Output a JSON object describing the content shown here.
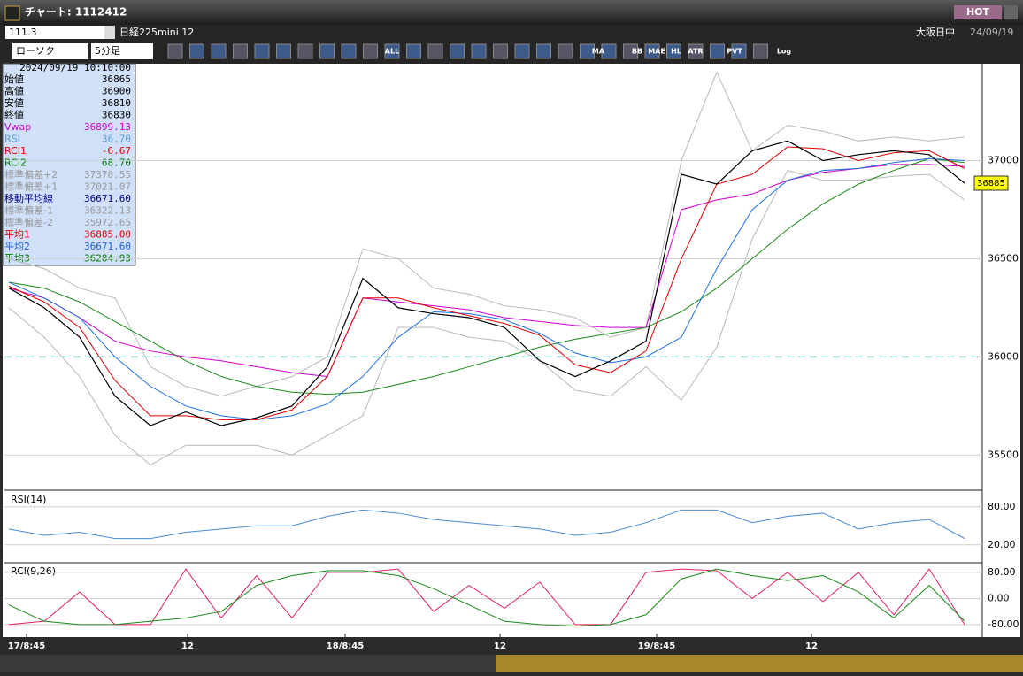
{
  "window": {
    "title": "チャート: 1112412",
    "hot": "HOT"
  },
  "toolbar": {
    "code": "111.3",
    "name": "日経225mini 12",
    "chart_type": "ローソク",
    "interval": "5分足",
    "session": "大阪日中",
    "date": "24/09/19",
    "buttons": [
      "ALL",
      "MA",
      "BB",
      "MAE",
      "HL",
      "ATR",
      "PVT",
      "Log"
    ]
  },
  "info": {
    "datetime": "2024/09/19  10:10:00",
    "rows": [
      {
        "label": "始値",
        "value": "36865",
        "color": "#000000"
      },
      {
        "label": "高値",
        "value": "36900",
        "color": "#000000"
      },
      {
        "label": "安値",
        "value": "36810",
        "color": "#000000"
      },
      {
        "label": "終値",
        "value": "36830",
        "color": "#000000"
      },
      {
        "label": "Vwap",
        "value": "36899.13",
        "color": "#d000d0"
      },
      {
        "label": "RSI",
        "value": "36.70",
        "color": "#5b9bd5"
      },
      {
        "label": "RCI1",
        "value": "-6.67",
        "color": "#e00000"
      },
      {
        "label": "RCI2",
        "value": "68.70",
        "color": "#007a00"
      },
      {
        "label": "標準偏差+2",
        "value": "37370.55",
        "color": "#999999"
      },
      {
        "label": "標準偏差+1",
        "value": "37021.07",
        "color": "#999999"
      },
      {
        "label": "移動平均線",
        "value": "36671.60",
        "color": "#000080"
      },
      {
        "label": "標準偏差-1",
        "value": "36322.13",
        "color": "#999999"
      },
      {
        "label": "標準偏差-2",
        "value": "35972.65",
        "color": "#999999"
      },
      {
        "label": "平均1",
        "value": "36885.00",
        "color": "#e00000"
      },
      {
        "label": "平均2",
        "value": "36671.60",
        "color": "#1f5fd0"
      },
      {
        "label": "平均3",
        "value": "36284.93",
        "color": "#007a00"
      }
    ]
  },
  "price_chart": {
    "type": "line",
    "ylim": [
      35330,
      37480
    ],
    "yticks": [
      35500,
      36000,
      36500,
      37000
    ],
    "xlim": [
      0,
      27
    ],
    "xticks": [
      {
        "value": 0.5,
        "label": "17/8:45"
      },
      {
        "value": 5.05,
        "label": "12"
      },
      {
        "value": 9.5,
        "label": "18/8:45"
      },
      {
        "value": 13.875,
        "label": "12"
      },
      {
        "value": 18.3,
        "label": "19/8:45"
      },
      {
        "value": 22.675,
        "label": "12"
      }
    ],
    "last": 36885,
    "reference_line": 36000,
    "series": [
      {
        "name": "BB+",
        "color": "#b8b8b8",
        "values": [
          36500,
          36450,
          36350,
          36300,
          35950,
          35850,
          35800,
          35850,
          35900,
          36000,
          36550,
          36500,
          36350,
          36320,
          36260,
          36240,
          36200,
          36100,
          36150,
          37000,
          37450,
          37050,
          37180,
          37150,
          37100,
          37120,
          37100,
          37120
        ]
      },
      {
        "name": "BB-",
        "color": "#b8b8b8",
        "values": [
          36250,
          36100,
          35900,
          35600,
          35450,
          35550,
          35550,
          35550,
          35500,
          35600,
          35700,
          36150,
          36150,
          36100,
          36080,
          35980,
          35830,
          35800,
          35950,
          35780,
          36050,
          36600,
          36950,
          36900,
          36900,
          36920,
          36930,
          36800
        ]
      },
      {
        "name": "Vwap",
        "color": "#d000d0",
        "values": [
          36350,
          36300,
          36200,
          36080,
          36030,
          36000,
          35980,
          35950,
          35920,
          35900,
          36300,
          36280,
          36260,
          36240,
          36200,
          36180,
          36160,
          36150,
          36150,
          36750,
          36800,
          36830,
          36900,
          36940,
          36960,
          36980,
          36980,
          36970
        ]
      },
      {
        "name": "平均3",
        "color": "#1a8a1a",
        "values": [
          36380,
          36350,
          36280,
          36180,
          36080,
          35980,
          35900,
          35850,
          35820,
          35810,
          35820,
          35860,
          35900,
          35950,
          36000,
          36050,
          36090,
          36120,
          36150,
          36230,
          36350,
          36500,
          36650,
          36780,
          36880,
          36950,
          37010,
          36990
        ]
      },
      {
        "name": "平均2",
        "color": "#1f6fe0",
        "values": [
          36380,
          36300,
          36200,
          36000,
          35850,
          35750,
          35700,
          35680,
          35700,
          35760,
          35900,
          36100,
          36230,
          36220,
          36190,
          36120,
          36020,
          35970,
          36000,
          36100,
          36450,
          36750,
          36900,
          36950,
          36960,
          36990,
          37010,
          37000
        ]
      },
      {
        "name": "平均1",
        "color": "#e00000",
        "values": [
          36360,
          36280,
          36150,
          35880,
          35700,
          35700,
          35680,
          35680,
          35730,
          35900,
          36300,
          36300,
          36250,
          36210,
          36170,
          36110,
          35960,
          35920,
          36030,
          36500,
          36880,
          36930,
          37070,
          37060,
          37000,
          37040,
          37050,
          36960
        ]
      },
      {
        "name": "終値",
        "color": "#000000",
        "values": [
          36350,
          36250,
          36100,
          35800,
          35650,
          35720,
          35650,
          35690,
          35750,
          35950,
          36400,
          36250,
          36220,
          36200,
          36150,
          35980,
          35900,
          35980,
          36080,
          36930,
          36880,
          37050,
          37100,
          37000,
          37030,
          37050,
          37030,
          36885
        ]
      }
    ]
  },
  "rsi_chart": {
    "type": "line",
    "title": "RSI(14)",
    "ylim": [
      -4,
      102
    ],
    "yticks": [
      {
        "value": 80,
        "label": "80.00"
      },
      {
        "value": 20,
        "label": "20.00"
      }
    ],
    "series": [
      {
        "name": "RSI",
        "color": "#4a8ad8",
        "values": [
          45,
          35,
          40,
          30,
          30,
          40,
          45,
          50,
          50,
          65,
          75,
          70,
          60,
          55,
          50,
          45,
          35,
          40,
          55,
          75,
          75,
          55,
          65,
          70,
          45,
          55,
          60,
          30
        ]
      }
    ]
  },
  "rci_chart": {
    "type": "line",
    "title": "RCI(9,26)",
    "ylim": [
      -113,
      104
    ],
    "yticks": [
      {
        "value": 80,
        "label": "80.00"
      },
      {
        "value": 0,
        "label": "0.00"
      },
      {
        "value": -80,
        "label": "-80.00"
      }
    ],
    "series": [
      {
        "name": "RCI1",
        "color": "#e0206a",
        "values": [
          -80,
          -70,
          20,
          -80,
          -80,
          90,
          -60,
          70,
          -60,
          80,
          80,
          90,
          -40,
          40,
          -30,
          50,
          -80,
          -80,
          80,
          90,
          85,
          0,
          80,
          -10,
          80,
          -50,
          90,
          -80
        ]
      },
      {
        "name": "RCI2",
        "color": "#1a8a1a",
        "values": [
          -20,
          -70,
          -80,
          -80,
          -70,
          -60,
          -40,
          40,
          70,
          85,
          85,
          70,
          30,
          -20,
          -70,
          -80,
          -85,
          -80,
          -50,
          60,
          90,
          70,
          55,
          70,
          20,
          -60,
          40,
          -70
        ]
      }
    ]
  }
}
